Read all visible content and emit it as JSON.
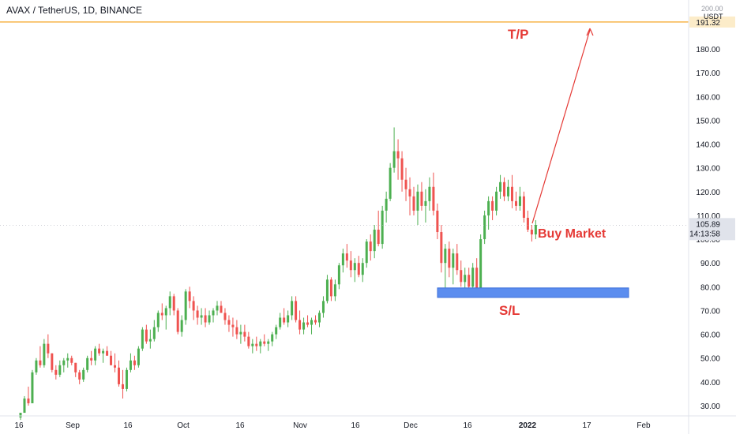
{
  "header": {
    "symbol": "AVAX / TetherUS, 1D, BINANCE",
    "axis_top_value": "200.00",
    "currency": "USDT"
  },
  "colors": {
    "up": "#26a69a",
    "up_body": "#4caf50",
    "down": "#ef5350",
    "tp_line": "#f5a623",
    "sl_box": "#5b8def",
    "annotation": "#e53935",
    "arrow": "#e53935",
    "axis_text": "#131722",
    "price_tag_bg": "#e0e3eb"
  },
  "annotations": {
    "tp_label": "T/P",
    "sl_label": "S/L",
    "buy_label": "Buy Market"
  },
  "price_tags": {
    "tp_level": "191.32",
    "current_price": "105.89",
    "countdown": "14:13:58"
  },
  "chart_data": {
    "type": "candlestick",
    "title": "AVAX / TetherUS, 1D, BINANCE",
    "ylabel": "USDT",
    "ylim": [
      25,
      200
    ],
    "y_ticks": [
      "30.00",
      "40.00",
      "50.00",
      "60.00",
      "70.00",
      "80.00",
      "90.00",
      "100.00",
      "110.00",
      "120.00",
      "130.00",
      "140.00",
      "150.00",
      "160.00",
      "170.00",
      "180.00"
    ],
    "x_ticks": [
      "16",
      "Sep",
      "16",
      "Oct",
      "16",
      "Nov",
      "16",
      "Dec",
      "16",
      "2022",
      "17",
      "Feb"
    ],
    "grid": false,
    "take_profit_level": 191.32,
    "stop_loss_zone": [
      75.5,
      79.5
    ],
    "current_price": 105.89,
    "candles": [
      [
        25,
        27,
        24,
        27
      ],
      [
        27,
        34,
        27,
        33
      ],
      [
        33,
        38,
        30,
        31
      ],
      [
        31,
        45,
        31,
        44
      ],
      [
        44,
        50,
        43,
        49
      ],
      [
        49,
        55,
        46,
        47
      ],
      [
        47,
        58,
        46,
        56
      ],
      [
        56,
        60,
        50,
        52
      ],
      [
        52,
        52,
        44,
        45
      ],
      [
        45,
        47,
        41,
        43
      ],
      [
        43,
        49,
        42,
        47
      ],
      [
        47,
        50,
        44,
        49
      ],
      [
        49,
        52,
        46,
        50
      ],
      [
        50,
        51,
        47,
        48
      ],
      [
        48,
        48,
        42,
        44
      ],
      [
        44,
        45,
        39,
        41
      ],
      [
        41,
        46,
        40,
        45
      ],
      [
        45,
        51,
        44,
        50
      ],
      [
        50,
        53,
        47,
        49
      ],
      [
        49,
        55,
        47,
        54
      ],
      [
        54,
        56,
        51,
        52
      ],
      [
        52,
        54,
        48,
        53
      ],
      [
        53,
        55,
        51,
        51
      ],
      [
        51,
        53,
        47,
        47
      ],
      [
        47,
        52,
        44,
        46
      ],
      [
        46,
        49,
        38,
        39
      ],
      [
        39,
        45,
        33,
        37
      ],
      [
        37,
        46,
        36,
        45
      ],
      [
        45,
        52,
        44,
        49
      ],
      [
        49,
        51,
        45,
        47
      ],
      [
        47,
        55,
        46,
        54
      ],
      [
        54,
        63,
        53,
        62
      ],
      [
        62,
        64,
        56,
        57
      ],
      [
        57,
        62,
        54,
        58
      ],
      [
        58,
        66,
        57,
        63
      ],
      [
        63,
        70,
        61,
        69
      ],
      [
        69,
        73,
        66,
        68
      ],
      [
        68,
        72,
        62,
        71
      ],
      [
        71,
        78,
        68,
        76
      ],
      [
        76,
        77,
        68,
        70
      ],
      [
        70,
        71,
        60,
        61
      ],
      [
        61,
        68,
        59,
        66
      ],
      [
        66,
        79,
        64,
        78
      ],
      [
        78,
        80,
        71,
        74
      ],
      [
        74,
        76,
        66,
        70
      ],
      [
        70,
        72,
        64,
        67
      ],
      [
        67,
        71,
        64,
        68
      ],
      [
        68,
        71,
        63,
        65
      ],
      [
        65,
        70,
        64,
        68
      ],
      [
        68,
        71,
        65,
        70
      ],
      [
        70,
        74,
        68,
        72
      ],
      [
        72,
        74,
        69,
        69
      ],
      [
        69,
        71,
        64,
        66
      ],
      [
        66,
        68,
        61,
        64
      ],
      [
        64,
        67,
        59,
        63
      ],
      [
        63,
        66,
        58,
        60
      ],
      [
        60,
        64,
        56,
        61
      ],
      [
        61,
        64,
        57,
        59
      ],
      [
        59,
        61,
        54,
        55
      ],
      [
        55,
        58,
        52,
        56
      ],
      [
        56,
        59,
        53,
        55
      ],
      [
        55,
        58,
        52,
        57
      ],
      [
        57,
        60,
        55,
        56
      ],
      [
        56,
        58,
        53,
        57
      ],
      [
        57,
        61,
        55,
        60
      ],
      [
        60,
        64,
        58,
        63
      ],
      [
        63,
        69,
        62,
        67
      ],
      [
        67,
        71,
        64,
        65
      ],
      [
        65,
        70,
        63,
        68
      ],
      [
        68,
        76,
        66,
        74
      ],
      [
        74,
        76,
        65,
        66
      ],
      [
        66,
        70,
        60,
        62
      ],
      [
        62,
        67,
        60,
        65
      ],
      [
        65,
        68,
        63,
        64
      ],
      [
        64,
        67,
        60,
        66
      ],
      [
        66,
        68,
        64,
        65
      ],
      [
        65,
        70,
        63,
        69
      ],
      [
        69,
        76,
        67,
        74
      ],
      [
        74,
        85,
        73,
        83
      ],
      [
        83,
        84,
        74,
        76
      ],
      [
        76,
        83,
        74,
        81
      ],
      [
        81,
        90,
        79,
        89
      ],
      [
        89,
        96,
        86,
        94
      ],
      [
        94,
        98,
        88,
        91
      ],
      [
        91,
        95,
        84,
        87
      ],
      [
        87,
        92,
        82,
        90
      ],
      [
        90,
        93,
        84,
        85
      ],
      [
        85,
        92,
        82,
        90
      ],
      [
        90,
        100,
        88,
        99
      ],
      [
        99,
        102,
        91,
        95
      ],
      [
        95,
        106,
        92,
        104
      ],
      [
        104,
        112,
        97,
        98
      ],
      [
        98,
        114,
        96,
        112
      ],
      [
        112,
        120,
        107,
        117
      ],
      [
        117,
        132,
        116,
        130
      ],
      [
        130,
        147,
        128,
        137
      ],
      [
        137,
        142,
        125,
        134
      ],
      [
        134,
        137,
        120,
        125
      ],
      [
        125,
        130,
        116,
        121
      ],
      [
        121,
        126,
        110,
        118
      ],
      [
        118,
        122,
        110,
        112
      ],
      [
        112,
        123,
        106,
        120
      ],
      [
        120,
        124,
        112,
        114
      ],
      [
        114,
        121,
        107,
        116
      ],
      [
        116,
        126,
        112,
        122
      ],
      [
        122,
        128,
        110,
        112
      ],
      [
        112,
        115,
        100,
        103
      ],
      [
        103,
        106,
        86,
        90
      ],
      [
        90,
        98,
        76,
        96
      ],
      [
        96,
        99,
        84,
        88
      ],
      [
        88,
        96,
        81,
        94
      ],
      [
        94,
        98,
        85,
        87
      ],
      [
        87,
        91,
        80,
        82
      ],
      [
        82,
        88,
        78,
        85
      ],
      [
        85,
        88,
        79,
        80
      ],
      [
        80,
        90,
        78,
        88
      ],
      [
        88,
        92,
        77,
        79
      ],
      [
        79,
        102,
        79,
        100
      ],
      [
        100,
        112,
        98,
        110
      ],
      [
        110,
        118,
        104,
        116
      ],
      [
        116,
        118,
        108,
        112
      ],
      [
        112,
        122,
        110,
        120
      ],
      [
        120,
        127,
        117,
        124
      ],
      [
        124,
        126,
        116,
        118
      ],
      [
        118,
        125,
        116,
        122
      ],
      [
        122,
        127,
        113,
        116
      ],
      [
        116,
        120,
        112,
        114
      ],
      [
        114,
        122,
        112,
        118
      ],
      [
        118,
        120,
        107,
        109
      ],
      [
        109,
        112,
        103,
        104
      ],
      [
        104,
        106,
        99,
        102
      ],
      [
        102,
        108,
        100,
        106
      ]
    ]
  }
}
